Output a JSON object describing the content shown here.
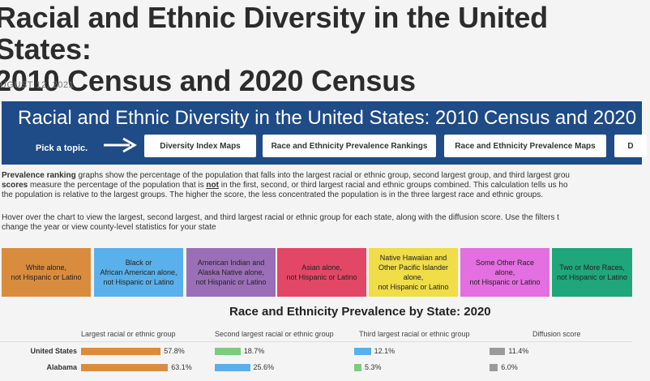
{
  "article": {
    "title_line1": "Racial and Ethnic Diversity in the United States:",
    "title_line2": "2010 Census and 2020 Census",
    "date": "UGUST 12, 2021"
  },
  "banner": {
    "title": "Racial and Ethnic Diversity in the United States: 2010 Census and 2020",
    "pick_label": "Pick a topic.",
    "buttons": [
      {
        "label": "Diversity Index Maps"
      },
      {
        "label": "Race and Ethnicity Prevalence Rankings"
      },
      {
        "label": "Race and Ethnicity Prevalence Maps"
      },
      {
        "label": "D"
      }
    ]
  },
  "description": {
    "line1_bold": "Prevalence ranking",
    "line1": " graphs show the percentage of the population that falls into the largest racial or ethnic group, second largest group, and third largest grou",
    "line2_bold": "scores",
    "line2_a": " measure the percentage of the population that is ",
    "line2_not": "not",
    "line2_b": " in the first, second, or third largest racial and ethnic groups combined. This calculation tells us ho",
    "line3": "the population is relative to the largest groups. The higher the score, the less concentrated the population is in the three largest race and ethnic groups.",
    "line4": "Hover over the chart to view the largest, second largest, and third largest racial or ethnic group for each state, along with the diffusion score. Use the filters t",
    "line5": "change the year or view county-level statistics for your state"
  },
  "legend": [
    {
      "line1": "White alone,",
      "line2": "",
      "line3": "not Hispanic or Latino",
      "color": "#d98c3e"
    },
    {
      "line1": "Black or",
      "line2": "African American alone,",
      "line3": "not Hispanic or Latino",
      "color": "#5ab0ea"
    },
    {
      "line1": "American Indian and",
      "line2": "Alaska Native alone,",
      "line3": "not Hispanic or Latino",
      "color": "#9b6fb7"
    },
    {
      "line1": "Asian alone,",
      "line2": "",
      "line3": "not Hispanic or Latino",
      "color": "#e34766"
    },
    {
      "line1": "Native Hawaiian and",
      "line2": "Other Pacific Islander alone,",
      "line3": "not Hispanic or Latino",
      "color": "#f0dd47"
    },
    {
      "line1": "Some Other Race",
      "line2": "alone,",
      "line3": "not Hispanic or Latino",
      "color": "#e36fe0"
    },
    {
      "line1": "Two or More Races,",
      "line2": "",
      "line3": "not Hispanic or Latino",
      "color": "#1fa67a"
    }
  ],
  "chart_data": {
    "type": "bar",
    "title": "Race and Ethnicity Prevalence by State: 2020",
    "columns": [
      "Largest racial or ethnic group",
      "Second largest racial or ethnic group",
      "Third largest racial or ethnic group",
      "Diffusion score"
    ],
    "rows": [
      {
        "label": "United States",
        "values": [
          {
            "value": 57.8,
            "text": "57.8%",
            "color": "#d98c3e"
          },
          {
            "value": 18.7,
            "text": "18.7%",
            "color": "#7bcc7b"
          },
          {
            "value": 12.1,
            "text": "12.1%",
            "color": "#5ab0ea"
          },
          {
            "value": 11.4,
            "text": "11.4%",
            "color": "#9a9a9a"
          }
        ]
      },
      {
        "label": "Alabama",
        "values": [
          {
            "value": 63.1,
            "text": "63.1%",
            "color": "#d98c3e"
          },
          {
            "value": 25.6,
            "text": "25.6%",
            "color": "#5ab0ea"
          },
          {
            "value": 5.3,
            "text": "5.3%",
            "color": "#7bcc7b"
          },
          {
            "value": 6.0,
            "text": "6.0%",
            "color": "#9a9a9a"
          }
        ]
      }
    ]
  }
}
